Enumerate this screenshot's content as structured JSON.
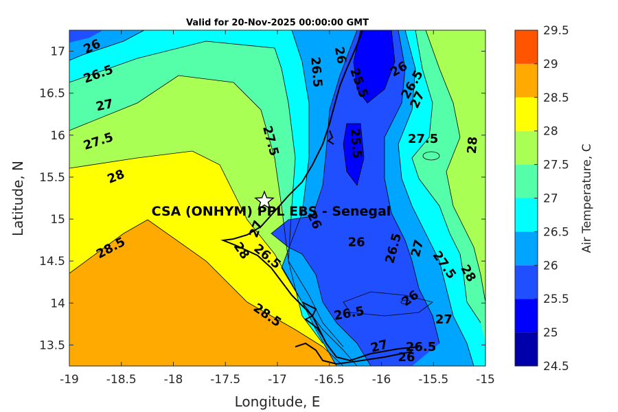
{
  "chart_data": {
    "type": "contour",
    "title": "Valid for 20-Nov-2025 00:00:00 GMT",
    "xlabel": "Longitude, E",
    "ylabel": "Latitude, N",
    "xlim": [
      -19,
      -15
    ],
    "ylim": [
      13.25,
      17.25
    ],
    "x_ticks": [
      -19,
      -18.5,
      -18,
      -17.5,
      -17,
      -16.5,
      -16,
      -15.5,
      -15
    ],
    "y_ticks": [
      13.5,
      14,
      14.5,
      15,
      15.5,
      16,
      16.5,
      17
    ],
    "colorbar": {
      "label": "Air Temperature, C",
      "levels": [
        24.5,
        25,
        25.5,
        26,
        26.5,
        27,
        27.5,
        28,
        28.5,
        29,
        29.5
      ],
      "colors": [
        "#0000aa",
        "#0000ff",
        "#1f4fff",
        "#00a5ff",
        "#00ffff",
        "#55ffaa",
        "#aaff55",
        "#ffff00",
        "#ffaa00",
        "#ff5500",
        "#ff0000"
      ]
    },
    "site": {
      "label": "CSA (ONHYM) PPL EBS  - Senegal",
      "lon": -17.13,
      "lat": 15.2
    },
    "contour_labels": [
      {
        "text": "26",
        "lon": -18.78,
        "lat": 17.05,
        "rot": -25
      },
      {
        "text": "26.5",
        "lon": -18.72,
        "lat": 16.72,
        "rot": -20
      },
      {
        "text": "27",
        "lon": -18.66,
        "lat": 16.35,
        "rot": -12
      },
      {
        "text": "27.5",
        "lon": -18.72,
        "lat": 15.92,
        "rot": -18
      },
      {
        "text": "28",
        "lon": -18.55,
        "lat": 15.5,
        "rot": -22
      },
      {
        "text": "28.5",
        "lon": -18.6,
        "lat": 14.65,
        "rot": -28
      },
      {
        "text": "27.5",
        "lon": -17.07,
        "lat": 15.93,
        "rot": 75
      },
      {
        "text": "26.5",
        "lon": -16.63,
        "lat": 16.75,
        "rot": 85
      },
      {
        "text": "26",
        "lon": -16.4,
        "lat": 16.95,
        "rot": 80
      },
      {
        "text": "25.5",
        "lon": -16.22,
        "lat": 16.62,
        "rot": 70
      },
      {
        "text": "25.5",
        "lon": -16.25,
        "lat": 15.9,
        "rot": 85
      },
      {
        "text": "26",
        "lon": -15.83,
        "lat": 16.78,
        "rot": -30
      },
      {
        "text": "26.5",
        "lon": -15.7,
        "lat": 16.6,
        "rot": -60
      },
      {
        "text": "27",
        "lon": -15.65,
        "lat": 16.42,
        "rot": -65
      },
      {
        "text": "27.5",
        "lon": -15.6,
        "lat": 15.95,
        "rot": 0
      },
      {
        "text": "28",
        "lon": -15.12,
        "lat": 15.88,
        "rot": -85
      },
      {
        "text": "26",
        "lon": -16.65,
        "lat": 14.98,
        "rot": 65
      },
      {
        "text": "27",
        "lon": -17.2,
        "lat": 14.88,
        "rot": -70
      },
      {
        "text": "28",
        "lon": -17.35,
        "lat": 14.62,
        "rot": 55
      },
      {
        "text": "26.5",
        "lon": -17.1,
        "lat": 14.55,
        "rot": 40
      },
      {
        "text": "26",
        "lon": -16.24,
        "lat": 14.72,
        "rot": 0
      },
      {
        "text": "26.5",
        "lon": -15.88,
        "lat": 14.65,
        "rot": -75
      },
      {
        "text": "27",
        "lon": -15.65,
        "lat": 14.65,
        "rot": -75
      },
      {
        "text": "27.5",
        "lon": -15.4,
        "lat": 14.45,
        "rot": 55
      },
      {
        "text": "28",
        "lon": -15.17,
        "lat": 14.35,
        "rot": 60
      },
      {
        "text": "26",
        "lon": -15.72,
        "lat": 14.05,
        "rot": -35
      },
      {
        "text": "26.5",
        "lon": -16.31,
        "lat": 13.87,
        "rot": -10
      },
      {
        "text": "27",
        "lon": -15.4,
        "lat": 13.8,
        "rot": 0
      },
      {
        "text": "26.5",
        "lon": -15.62,
        "lat": 13.47,
        "rot": 0
      },
      {
        "text": "26",
        "lon": -15.76,
        "lat": 13.35,
        "rot": 0
      },
      {
        "text": "27",
        "lon": -16.02,
        "lat": 13.48,
        "rot": -15
      },
      {
        "text": "28.5",
        "lon": -17.1,
        "lat": 13.85,
        "rot": 35
      }
    ]
  }
}
